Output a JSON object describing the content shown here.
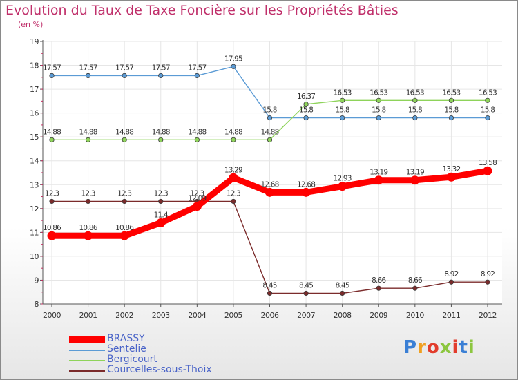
{
  "chart_data": {
    "type": "line",
    "title": "Evolution du Taux de Taxe Foncière sur les Propriétés Bâties",
    "subtitle": "(en %)",
    "xlabel": "",
    "ylabel": "(en %)",
    "ylim": [
      8,
      19
    ],
    "yticks": [
      "8",
      "9",
      "10",
      "11",
      "12",
      "13",
      "14",
      "15",
      "16",
      "17",
      "18",
      "19"
    ],
    "categories": [
      "2000",
      "2001",
      "2002",
      "2003",
      "2004",
      "2005",
      "2006",
      "2007",
      "2008",
      "2009",
      "2010",
      "2011",
      "2012"
    ],
    "series": [
      {
        "name": "BRASSY",
        "color": "#ff0000",
        "values": [
          10.86,
          10.86,
          10.86,
          11.4,
          12.09,
          13.29,
          12.68,
          12.68,
          12.93,
          13.19,
          13.19,
          13.32,
          13.58
        ],
        "labels": [
          "10.86",
          "10.86",
          "10.86",
          "11.4",
          "12.09",
          "13.29",
          "12.68",
          "12.68",
          "12.93",
          "13.19",
          "13.19",
          "13.32",
          "13.58"
        ]
      },
      {
        "name": "Sentelie",
        "color": "#5b9bd5",
        "values": [
          17.57,
          17.57,
          17.57,
          17.57,
          17.57,
          17.95,
          15.8,
          15.8,
          15.8,
          15.8,
          15.8,
          15.8,
          15.8
        ],
        "labels": [
          "17.57",
          "17.57",
          "17.57",
          "17.57",
          "17.57",
          "17.95",
          "15.8",
          "15.8",
          "15.8",
          "15.8",
          "15.8",
          "15.8",
          "15.8"
        ]
      },
      {
        "name": "Bergicourt",
        "color": "#8ed35a",
        "values": [
          14.88,
          14.88,
          14.88,
          14.88,
          14.88,
          14.88,
          14.88,
          16.37,
          16.53,
          16.53,
          16.53,
          16.53,
          16.53
        ],
        "labels": [
          "14.88",
          "14.88",
          "14.88",
          "14.88",
          "14.88",
          "14.88",
          "14.88",
          "16.37",
          "16.53",
          "16.53",
          "16.53",
          "16.53",
          "16.53"
        ]
      },
      {
        "name": "Courcelles-sous-Thoix",
        "color": "#7b2b2b",
        "values": [
          12.3,
          12.3,
          12.3,
          12.3,
          12.3,
          12.3,
          8.45,
          8.45,
          8.45,
          8.66,
          8.66,
          8.92,
          8.92
        ],
        "labels": [
          "12.3",
          "12.3",
          "12.3",
          "12.3",
          "12.3",
          "12.3",
          "8.45",
          "8.45",
          "8.45",
          "8.66",
          "8.66",
          "8.92",
          "8.92"
        ]
      }
    ],
    "legend_position": "bottom-left",
    "grid": true
  },
  "logo": {
    "text": "Prox i ti",
    "letters": [
      "P",
      "r",
      "o",
      "x",
      "i",
      "t",
      "i"
    ],
    "colors": [
      "#3a7fd5",
      "#f0a020",
      "#e23c2c",
      "#8cc63f",
      "#e23c2c",
      "#3a7fd5",
      "#8cc63f"
    ]
  }
}
